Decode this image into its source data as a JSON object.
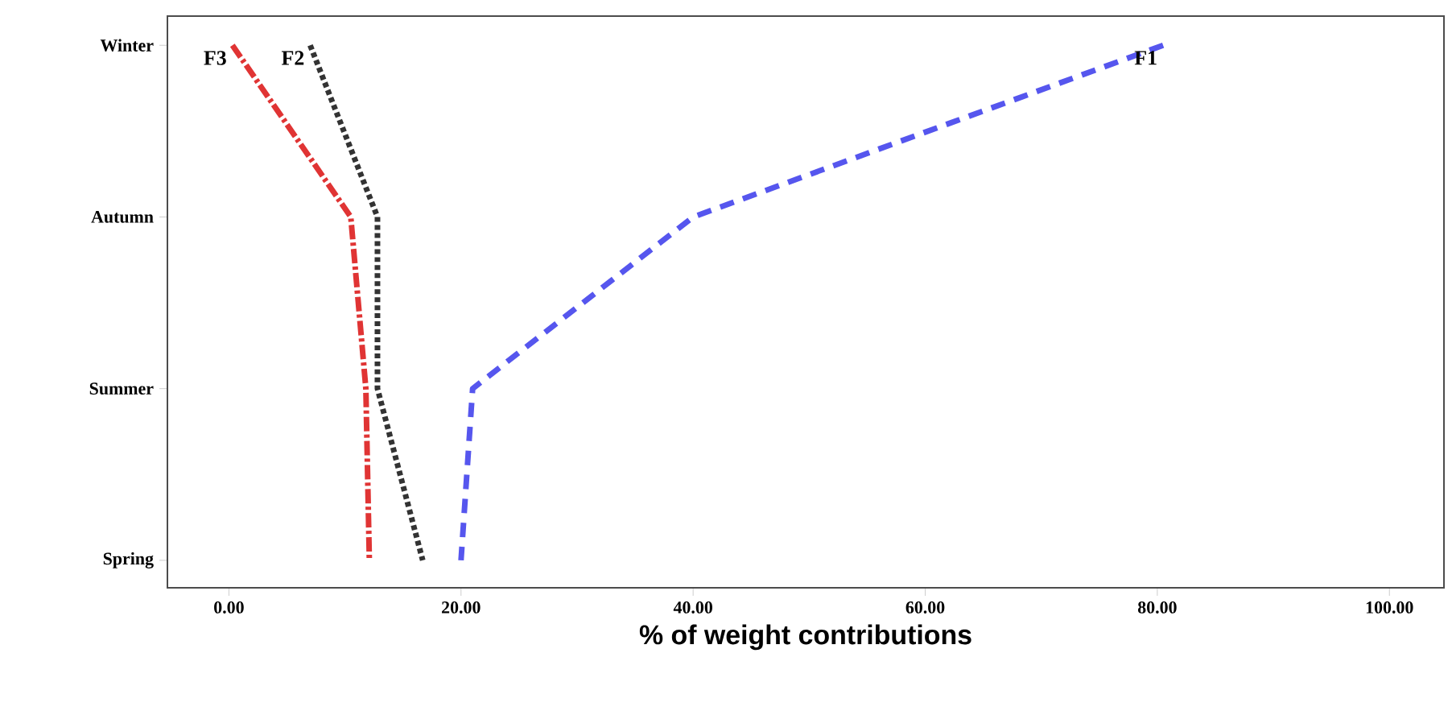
{
  "chart_data": {
    "type": "line",
    "orientation": "horizontal",
    "xlabel": "% of weight contributions",
    "categories": [
      "Winter",
      "Autumn",
      "Summer",
      "Spring"
    ],
    "series": [
      {
        "name": "F1",
        "color": "#5656ee",
        "line_style": "dashed",
        "values": [
          80.5,
          40,
          21,
          20
        ]
      },
      {
        "name": "F2",
        "color": "#333333",
        "line_style": "dotted",
        "values": [
          7,
          12.8,
          12.8,
          16.7
        ]
      },
      {
        "name": "F3",
        "color": "#e03434",
        "line_style": "dashdot",
        "values": [
          0.3,
          10.5,
          11.8,
          12.1
        ]
      }
    ],
    "xlim": [
      -5.3,
      104.7
    ],
    "xticks": [
      {
        "value": 0,
        "label": "0.00"
      },
      {
        "value": 20,
        "label": "20.00"
      },
      {
        "value": 40,
        "label": "40.00"
      },
      {
        "value": 60,
        "label": "60.00"
      },
      {
        "value": 80,
        "label": "80.00"
      },
      {
        "value": 100,
        "label": "100.00"
      }
    ],
    "grid": false
  }
}
